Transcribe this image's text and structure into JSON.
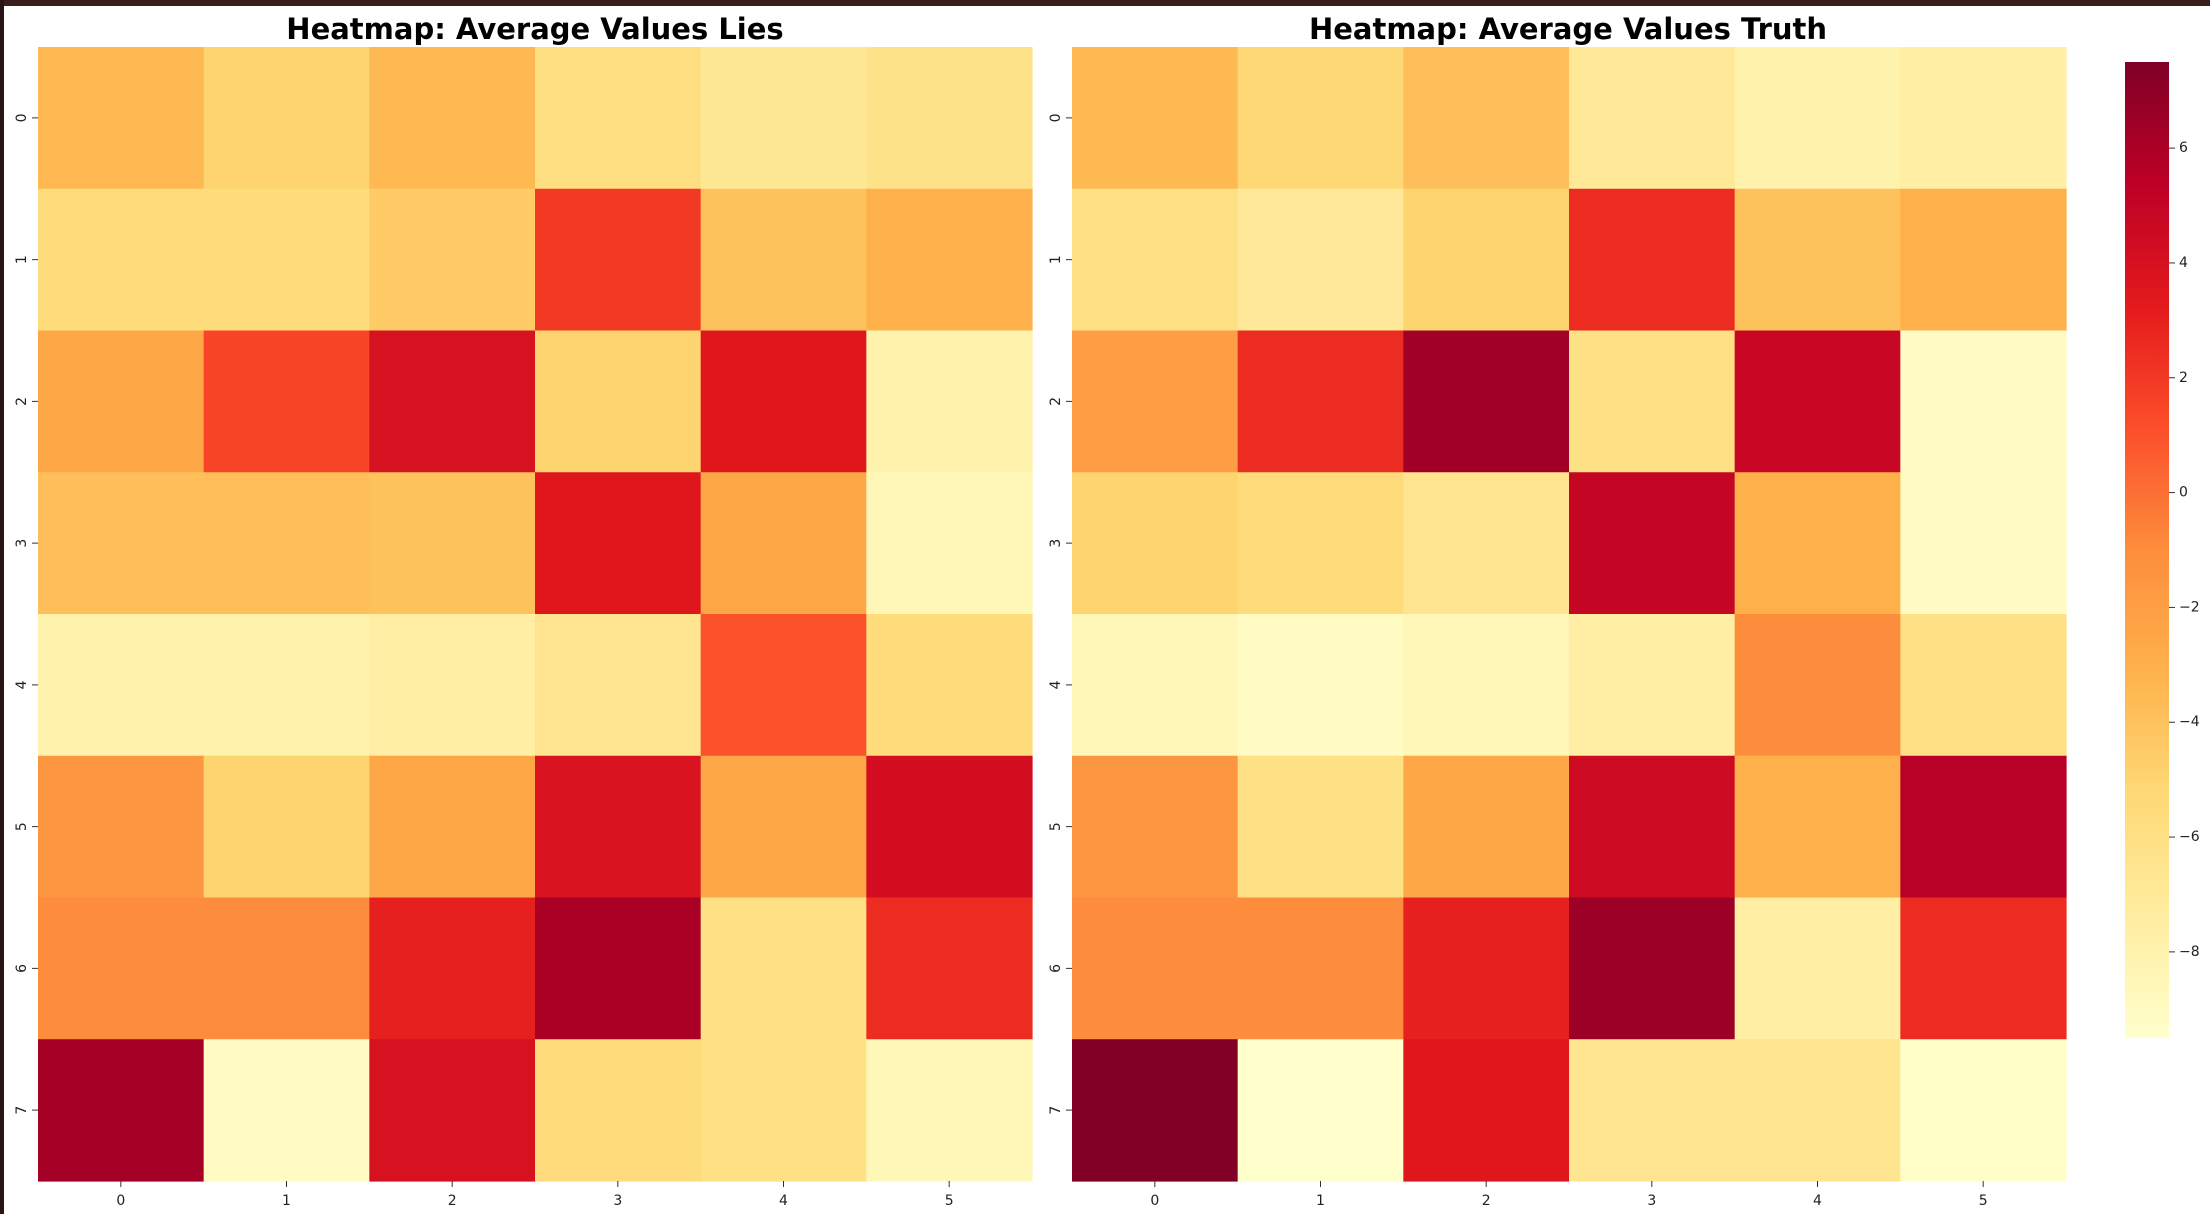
{
  "chart_data": [
    {
      "type": "heatmap",
      "title": "Heatmap: Average Values Lies",
      "x": [
        "0",
        "1",
        "2",
        "3",
        "4",
        "5"
      ],
      "y": [
        "0",
        "1",
        "2",
        "3",
        "4",
        "5",
        "6",
        "7"
      ],
      "values": [
        [
          -3.5,
          -5.0,
          -3.5,
          -5.8,
          -6.8,
          -6.2
        ],
        [
          -5.5,
          -5.5,
          -4.5,
          2.0,
          -4.0,
          -3.0
        ],
        [
          -2.5,
          1.5,
          4.0,
          -5.0,
          3.5,
          -8.0
        ],
        [
          -3.8,
          -3.8,
          -4.0,
          3.5,
          -2.5,
          -8.5
        ],
        [
          -8.0,
          -8.0,
          -7.5,
          -6.5,
          1.0,
          -5.5
        ],
        [
          -1.5,
          -5.0,
          -2.5,
          3.8,
          -2.5,
          4.2
        ],
        [
          -1.0,
          -1.0,
          3.0,
          6.0,
          -6.0,
          2.5
        ],
        [
          6.2,
          -9.0,
          4.0,
          -5.5,
          -6.0,
          -8.5
        ]
      ]
    },
    {
      "type": "heatmap",
      "title": "Heatmap: Average Values Truth",
      "x": [
        "0",
        "1",
        "2",
        "3",
        "4",
        "5"
      ],
      "y": [
        "0",
        "1",
        "2",
        "3",
        "4",
        "5",
        "6",
        "7"
      ],
      "values": [
        [
          -3.5,
          -5.2,
          -3.8,
          -7.0,
          -8.0,
          -7.5
        ],
        [
          -6.0,
          -7.0,
          -5.0,
          2.5,
          -4.0,
          -3.0
        ],
        [
          -2.0,
          2.5,
          6.3,
          -6.0,
          4.8,
          -9.0
        ],
        [
          -5.0,
          -5.5,
          -6.5,
          5.0,
          -3.0,
          -9.0
        ],
        [
          -8.5,
          -9.0,
          -8.5,
          -7.5,
          -1.0,
          -6.0
        ],
        [
          -1.5,
          -6.0,
          -2.5,
          4.5,
          -3.0,
          5.5
        ],
        [
          -1.0,
          -1.0,
          3.0,
          6.5,
          -7.5,
          2.5
        ],
        [
          7.5,
          -9.5,
          3.5,
          -6.5,
          -6.5,
          -9.3
        ]
      ]
    }
  ],
  "colorbar": {
    "min": -9.5,
    "max": 7.5,
    "ticks": [
      6,
      4,
      2,
      0,
      -2,
      -4,
      -6,
      -8
    ],
    "tick_labels": [
      "6",
      "4",
      "2",
      "0",
      "−2",
      "−4",
      "−6",
      "−8"
    ],
    "colormap": "YlOrRd",
    "stops": [
      "#ffffcc",
      "#ffeda0",
      "#fed976",
      "#feb24c",
      "#fd8d3c",
      "#fc4e2a",
      "#e31a1c",
      "#bd0026",
      "#800026"
    ]
  }
}
